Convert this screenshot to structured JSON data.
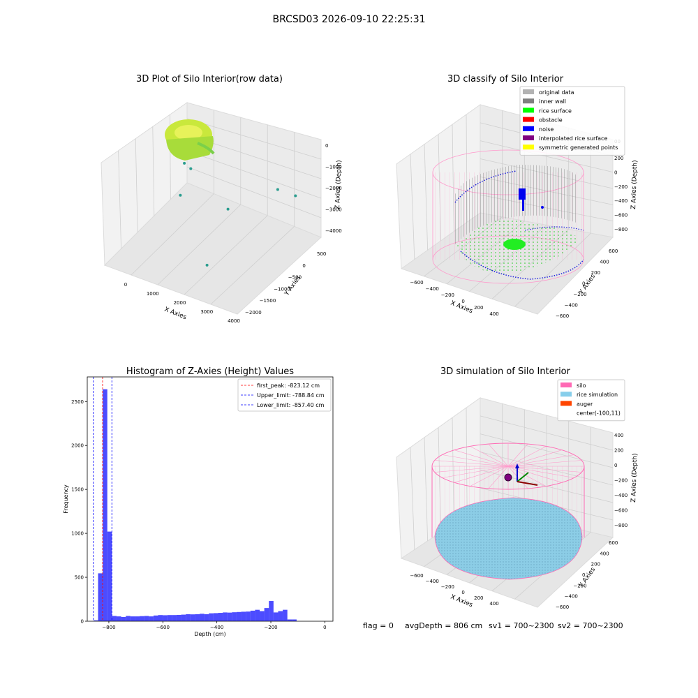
{
  "suptitle": "BRCSD03 2026-09-10 22:25:31",
  "status_line": {
    "flag": "flag = 0",
    "avg_depth": "avgDepth = 806 cm",
    "sv1": "sv1 = 700~2300",
    "sv2": "sv2 = 700~2300"
  },
  "chart_data": [
    {
      "type": "scatter",
      "title": "3D Plot of Silo Interior(row data)",
      "xlabel": "X Axies",
      "ylabel": "Y Axies",
      "zlabel": "Z Axies (Depth)",
      "x_ticks": [
        "0",
        "1000",
        "2000",
        "3000",
        "4000"
      ],
      "y_ticks": [
        "500",
        "0",
        "−500",
        "−1000",
        "−1500",
        "−2000"
      ],
      "z_ticks": [
        "0",
        "−1000",
        "−2000",
        "−3000",
        "−4000"
      ],
      "outlier_points": [
        {
          "x": 400,
          "y": -300,
          "z": -1200
        },
        {
          "x": 500,
          "y": -200,
          "z": -1500
        },
        {
          "x": 600,
          "y": -600,
          "z": -2000
        },
        {
          "x": 1500,
          "y": 0,
          "z": -3200
        },
        {
          "x": 2800,
          "y": 300,
          "z": -3000
        },
        {
          "x": 3600,
          "y": 100,
          "z": -3100
        },
        {
          "x": 1800,
          "y": -900,
          "z": -4200
        }
      ],
      "colors": {
        "cluster": "#b8e03a",
        "cluster_edge": "#6fcf4a",
        "outlier": "#2a9d8f"
      }
    },
    {
      "type": "scatter",
      "title": "3D classify of Silo Interior",
      "xlabel": "X Axies",
      "ylabel": "Y Axies",
      "zlabel": "Z Axies (Depth)",
      "x_ticks": [
        "−600",
        "−400",
        "−200",
        "0",
        "200",
        "400"
      ],
      "y_ticks": [
        "600",
        "400",
        "200",
        "0",
        "−200",
        "−400",
        "−600"
      ],
      "z_ticks": [
        "200",
        "0",
        "−200",
        "−400",
        "−600",
        "−800"
      ],
      "z_tick_partial": "00",
      "legend": [
        {
          "label": "original data",
          "color": "#b3b3b3"
        },
        {
          "label": "inner wall",
          "color": "#808080"
        },
        {
          "label": "rice surface",
          "color": "#00ff00"
        },
        {
          "label": "obstacle",
          "color": "#ff0000"
        },
        {
          "label": "noise",
          "color": "#0000ff"
        },
        {
          "label": "interpolated rice surface",
          "color": "#800080"
        },
        {
          "label": "symmetric generated points",
          "color": "#ffff00"
        }
      ],
      "legend_loc": "upper right"
    },
    {
      "type": "bar",
      "title": "Histogram of Z-Axies (Height) Values",
      "xlabel": "Depth (cm)",
      "ylabel": "Frequency",
      "xlim": [
        -880,
        30
      ],
      "ylim": [
        0,
        2780
      ],
      "x_ticks": [
        {
          "v": -800,
          "label": "−800"
        },
        {
          "v": -600,
          "label": "−600"
        },
        {
          "v": -400,
          "label": "−400"
        },
        {
          "v": -200,
          "label": "−200"
        },
        {
          "v": 0,
          "label": "0"
        }
      ],
      "y_ticks": [
        {
          "v": 0,
          "label": "0"
        },
        {
          "v": 500,
          "label": "500"
        },
        {
          "v": 1000,
          "label": "1000"
        },
        {
          "v": 1500,
          "label": "1500"
        },
        {
          "v": 2000,
          "label": "2000"
        },
        {
          "v": 2500,
          "label": "2500"
        }
      ],
      "bin_start": -857,
      "bin_width": 17.1,
      "counts": [
        10,
        545,
        2640,
        1020,
        60,
        55,
        48,
        60,
        55,
        55,
        58,
        60,
        55,
        65,
        70,
        68,
        70,
        70,
        72,
        75,
        80,
        78,
        80,
        85,
        80,
        90,
        92,
        95,
        100,
        98,
        102,
        105,
        108,
        110,
        120,
        130,
        115,
        150,
        230,
        100,
        115,
        130,
        20,
        20
      ],
      "bar_color": "#0000ff",
      "bar_opacity": 0.7,
      "vlines": [
        {
          "x": -823.12,
          "label": "first_peak: -823.12 cm",
          "color": "#ff0000"
        },
        {
          "x": -788.84,
          "label": "Upper_limit: -788.84 cm",
          "color": "#0000ff"
        },
        {
          "x": -857.4,
          "label": "Lower_limit: -857.40 cm",
          "color": "#0000ff"
        }
      ],
      "legend_loc": "upper right"
    },
    {
      "type": "scatter",
      "title": "3D simulation of Silo Interior",
      "xlabel": "X Axies",
      "ylabel": "Y Axies",
      "zlabel": "Z Axies (Depth)",
      "x_ticks": [
        "−600",
        "−400",
        "−200",
        "0",
        "200",
        "400"
      ],
      "y_ticks": [
        "600",
        "400",
        "200",
        "0",
        "−200",
        "−400",
        "−600"
      ],
      "z_ticks": [
        "400",
        "200",
        "0",
        "−200",
        "−400",
        "−600",
        "−800"
      ],
      "legend": [
        {
          "label": "silo",
          "color": "#ff69b4"
        },
        {
          "label": "rice simulation",
          "color": "#87ceeb"
        },
        {
          "label": "auger",
          "color": "#ff4500"
        },
        {
          "label": "center(-100,11)",
          "color": ""
        }
      ],
      "legend_loc": "upper right"
    }
  ]
}
